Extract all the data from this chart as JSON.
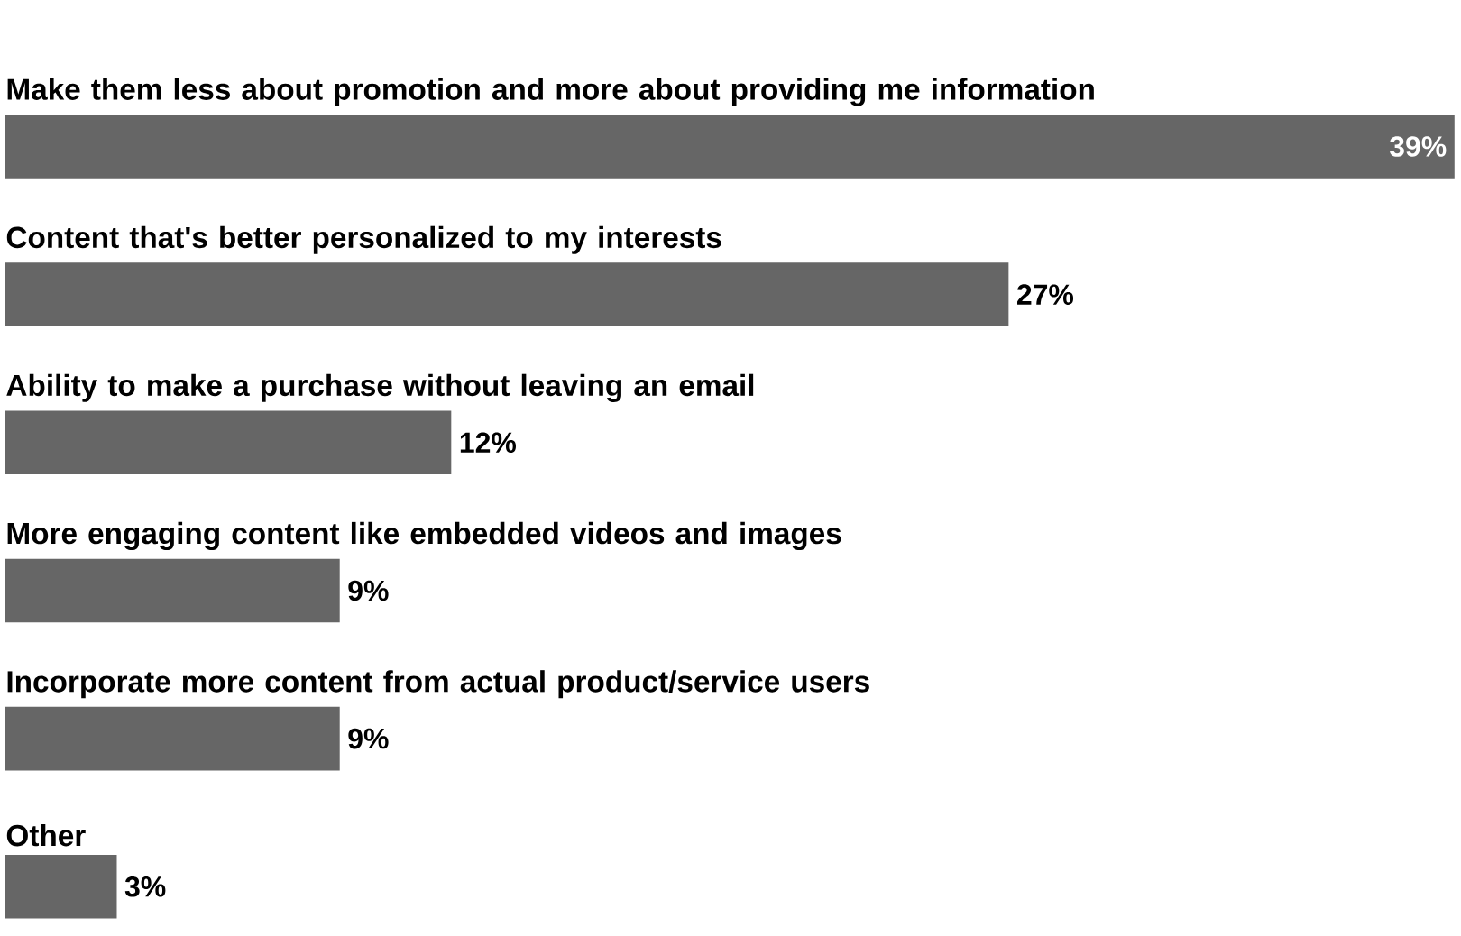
{
  "chart_data": {
    "type": "bar",
    "orientation": "horizontal",
    "categories": [
      "Make them less about promotion and more about providing me information",
      "Content that's better personalized to my interests",
      "Ability to make a purchase without leaving an email",
      "More engaging content like embedded videos and images",
      "Incorporate more content from actual product/service users",
      "Other"
    ],
    "values": [
      39,
      27,
      12,
      9,
      9,
      3
    ],
    "value_labels": [
      "39%",
      "27%",
      "12%",
      "9%",
      "9%",
      "3%"
    ],
    "color": "#666666"
  }
}
